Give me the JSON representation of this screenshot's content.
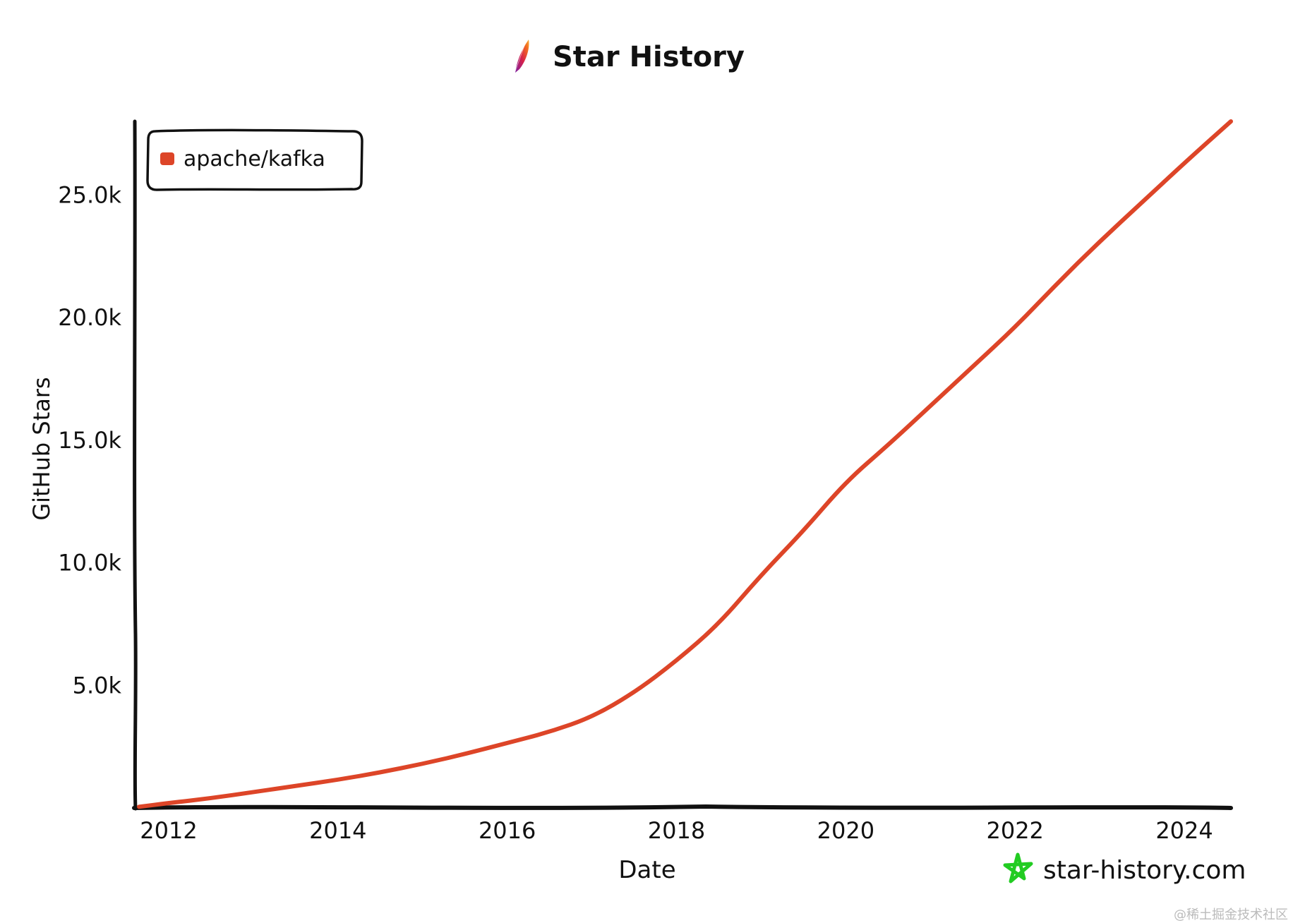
{
  "chart_data": {
    "type": "line",
    "title": "Star History",
    "xlabel": "Date",
    "ylabel": "GitHub Stars",
    "xlim": [
      2011.6,
      2024.55
    ],
    "ylim": [
      0,
      28000
    ],
    "x_ticks": [
      2012,
      2014,
      2016,
      2018,
      2020,
      2022,
      2024
    ],
    "x_tick_labels": [
      "2012",
      "2014",
      "2016",
      "2018",
      "2020",
      "2022",
      "2024"
    ],
    "y_ticks": [
      5000,
      10000,
      15000,
      20000,
      25000
    ],
    "y_tick_labels": [
      "5.0k",
      "10.0k",
      "15.0k",
      "20.0k",
      "25.0k"
    ],
    "grid": false,
    "legend_position": "top-left",
    "series": [
      {
        "name": "apache/kafka",
        "color": "#dd4528",
        "x": [
          2011.65,
          2012.0,
          2012.5,
          2013.0,
          2013.5,
          2014.0,
          2014.5,
          2015.0,
          2015.5,
          2016.0,
          2016.5,
          2017.0,
          2017.5,
          2018.0,
          2018.5,
          2019.0,
          2019.5,
          2020.0,
          2020.5,
          2021.0,
          2021.5,
          2022.0,
          2022.5,
          2023.0,
          2023.5,
          2024.0,
          2024.55
        ],
        "y": [
          50,
          200,
          400,
          650,
          900,
          1150,
          1450,
          1800,
          2200,
          2650,
          3100,
          3700,
          4700,
          6000,
          7500,
          9500,
          11300,
          13300,
          14800,
          16400,
          18000,
          19600,
          21400,
          23100,
          24700,
          26300,
          28000
        ]
      }
    ]
  },
  "watermark": {
    "brand": "star-history.com",
    "credit": "@稀土掘金技术社区"
  },
  "colors": {
    "line": "#dd4528",
    "axis": "#111111",
    "brand_star": "#22cc22"
  },
  "icons": {
    "title_logo": "apache-feather-icon",
    "brand_logo": "star-outline-icon"
  }
}
